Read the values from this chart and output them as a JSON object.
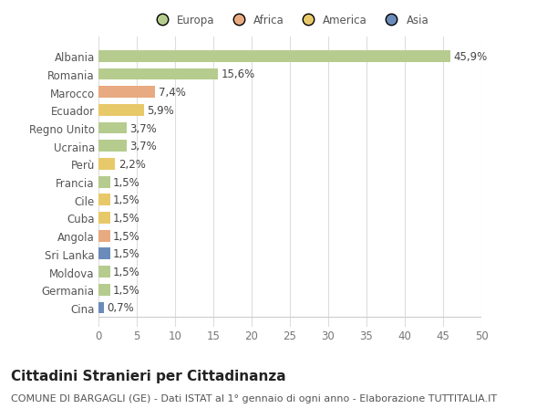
{
  "countries": [
    "Albania",
    "Romania",
    "Marocco",
    "Ecuador",
    "Regno Unito",
    "Ucraina",
    "Perù",
    "Francia",
    "Cile",
    "Cuba",
    "Angola",
    "Sri Lanka",
    "Moldova",
    "Germania",
    "Cina"
  ],
  "values": [
    45.9,
    15.6,
    7.4,
    5.9,
    3.7,
    3.7,
    2.2,
    1.5,
    1.5,
    1.5,
    1.5,
    1.5,
    1.5,
    1.5,
    0.7
  ],
  "labels": [
    "45,9%",
    "15,6%",
    "7,4%",
    "5,9%",
    "3,7%",
    "3,7%",
    "2,2%",
    "1,5%",
    "1,5%",
    "1,5%",
    "1,5%",
    "1,5%",
    "1,5%",
    "1,5%",
    "0,7%"
  ],
  "colors": [
    "#b5cc8e",
    "#b5cc8e",
    "#e8aa80",
    "#e8c96a",
    "#b5cc8e",
    "#b5cc8e",
    "#e8c96a",
    "#b5cc8e",
    "#e8c96a",
    "#e8c96a",
    "#e8aa80",
    "#6b8cba",
    "#b5cc8e",
    "#b5cc8e",
    "#6b8cba"
  ],
  "legend_labels": [
    "Europa",
    "Africa",
    "America",
    "Asia"
  ],
  "legend_colors": [
    "#b5cc8e",
    "#e8aa80",
    "#e8c96a",
    "#6b8cba"
  ],
  "xlim": [
    0,
    50
  ],
  "xticks": [
    0,
    5,
    10,
    15,
    20,
    25,
    30,
    35,
    40,
    45,
    50
  ],
  "title": "Cittadini Stranieri per Cittadinanza",
  "subtitle": "COMUNE DI BARGAGLI (GE) - Dati ISTAT al 1° gennaio di ogni anno - Elaborazione TUTTITALIA.IT",
  "bg_color": "#ffffff",
  "bar_height": 0.65,
  "label_fontsize": 8.5,
  "tick_fontsize": 8.5,
  "title_fontsize": 11,
  "subtitle_fontsize": 8
}
